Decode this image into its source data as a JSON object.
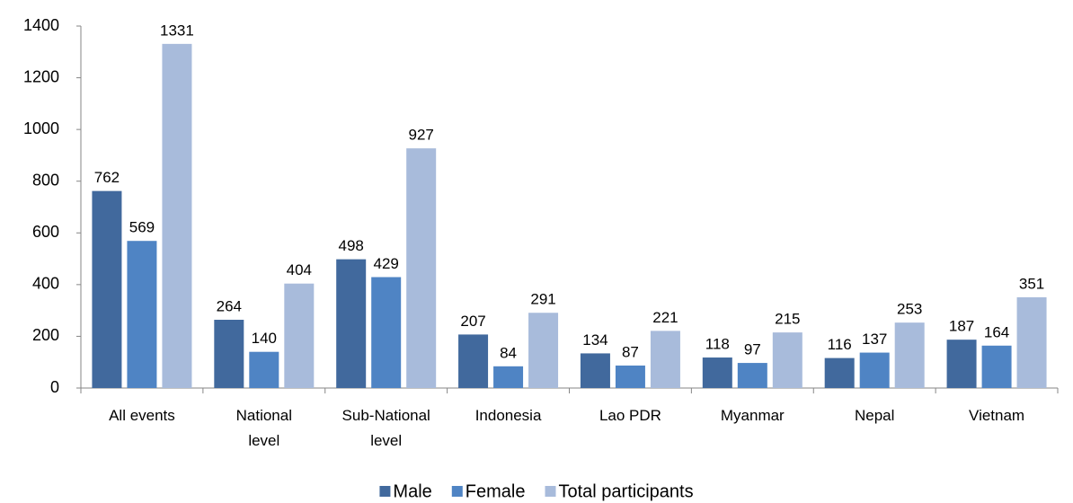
{
  "chart_data": {
    "type": "bar",
    "categories": [
      "All events",
      "National\nlevel",
      "Sub-National\nlevel",
      "Indonesia",
      "Lao PDR",
      "Myanmar",
      "Nepal",
      "Vietnam"
    ],
    "series": [
      {
        "name": "Male",
        "color": "#41699d",
        "values": [
          762,
          264,
          498,
          207,
          134,
          118,
          116,
          187
        ]
      },
      {
        "name": "Female",
        "color": "#4f84c4",
        "values": [
          569,
          140,
          429,
          84,
          87,
          97,
          137,
          164
        ]
      },
      {
        "name": "Total participants",
        "color": "#a8bbdb",
        "values": [
          1331,
          404,
          927,
          291,
          221,
          215,
          253,
          351
        ]
      }
    ],
    "ylim": [
      0,
      1400
    ],
    "yticks": [
      0,
      200,
      400,
      600,
      800,
      1000,
      1200,
      1400
    ],
    "grid": false,
    "legend": "bottom"
  }
}
